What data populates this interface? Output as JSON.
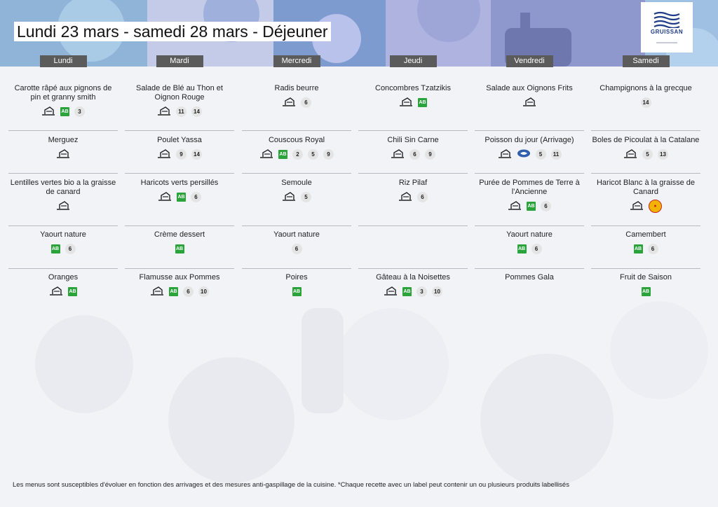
{
  "title": "Lundi 23 mars - samedi 28 mars  - Déjeuner",
  "logo": {
    "name": "GRUISSAN"
  },
  "colors": {
    "bio": "#29a33a",
    "day_header": "#5b5b5b",
    "badge": "#e4e4e4",
    "separator": "#b6b9c1"
  },
  "days": [
    {
      "label": "Lundi",
      "meals": [
        {
          "dish": "Carotte râpé aux pignons de pin et granny smith",
          "house": true,
          "bio": true,
          "allergens": [
            "3"
          ]
        },
        {
          "dish": "Merguez",
          "house": true,
          "bio": false,
          "allergens": []
        },
        {
          "dish": "Lentilles vertes bio a la graisse de canard",
          "house": true,
          "bio": false,
          "allergens": []
        },
        {
          "dish": "Yaourt nature",
          "house": false,
          "bio": true,
          "allergens": [
            "6"
          ]
        },
        {
          "dish": "Oranges",
          "house": true,
          "bio": true,
          "allergens": []
        }
      ]
    },
    {
      "label": "Mardi",
      "meals": [
        {
          "dish": "Salade de Blé au Thon et Oignon Rouge",
          "house": true,
          "bio": false,
          "allergens": [
            "11",
            "14"
          ]
        },
        {
          "dish": "Poulet Yassa",
          "house": true,
          "bio": false,
          "allergens": [
            "9",
            "14"
          ]
        },
        {
          "dish": "Haricots verts persillés",
          "house": true,
          "bio": true,
          "allergens": [
            "6"
          ]
        },
        {
          "dish": "Crème dessert",
          "house": false,
          "bio": true,
          "allergens": []
        },
        {
          "dish": "Flamusse aux Pommes",
          "house": true,
          "bio": true,
          "allergens": [
            "6",
            "10"
          ]
        }
      ]
    },
    {
      "label": "Mercredi",
      "meals": [
        {
          "dish": "Radis beurre",
          "house": true,
          "bio": false,
          "allergens": [
            "6"
          ]
        },
        {
          "dish": "Couscous Royal",
          "house": true,
          "bio": true,
          "allergens": [
            "2",
            "5",
            "9"
          ]
        },
        {
          "dish": "Semoule",
          "house": true,
          "bio": false,
          "allergens": [
            "5"
          ]
        },
        {
          "dish": "Yaourt nature",
          "house": false,
          "bio": false,
          "allergens": [
            "6"
          ]
        },
        {
          "dish": "Poires",
          "house": false,
          "bio": true,
          "allergens": []
        }
      ]
    },
    {
      "label": "Jeudi",
      "meals": [
        {
          "dish": "Concombres Tzatzikis",
          "house": true,
          "bio": true,
          "allergens": []
        },
        {
          "dish": "Chili Sin Carne",
          "house": true,
          "bio": false,
          "allergens": [
            "6",
            "9"
          ]
        },
        {
          "dish": "Riz Pilaf",
          "house": true,
          "bio": false,
          "allergens": [
            "6"
          ]
        },
        {
          "dish": "",
          "house": false,
          "bio": false,
          "allergens": []
        },
        {
          "dish": "Gâteau à la Noisettes",
          "house": true,
          "bio": true,
          "allergens": [
            "3",
            "10"
          ]
        }
      ]
    },
    {
      "label": "Vendredi",
      "meals": [
        {
          "dish": "Salade aux Oignons Frits",
          "house": true,
          "bio": false,
          "allergens": []
        },
        {
          "dish": "Poisson du jour (Arrivage)",
          "house": true,
          "bio": false,
          "fish_label": true,
          "allergens": [
            "5",
            "11"
          ]
        },
        {
          "dish": "Purée de Pommes de Terre à l'Ancienne",
          "house": true,
          "bio": true,
          "allergens": [
            "6"
          ]
        },
        {
          "dish": "Yaourt nature",
          "house": false,
          "bio": true,
          "allergens": [
            "6"
          ]
        },
        {
          "dish": "Pommes Gala",
          "house": false,
          "bio": false,
          "allergens": []
        }
      ]
    },
    {
      "label": "Samedi",
      "meals": [
        {
          "dish": "Champignons à la grecque",
          "house": false,
          "bio": false,
          "allergens": [
            "14"
          ]
        },
        {
          "dish": "Boles de Picoulat à la Catalane",
          "house": true,
          "bio": false,
          "allergens": [
            "5",
            "13"
          ]
        },
        {
          "dish": "Haricot Blanc à la graisse de Canard",
          "house": true,
          "bio": false,
          "quality_label": true,
          "allergens": []
        },
        {
          "dish": "Camembert",
          "house": false,
          "bio": true,
          "allergens": [
            "6"
          ]
        },
        {
          "dish": "Fruit de Saison",
          "house": false,
          "bio": true,
          "allergens": []
        }
      ]
    }
  ],
  "footer": "Les menus sont susceptibles d'évoluer en fonction des arrivages et des mesures anti-gaspillage de la cuisine. *Chaque recette avec un label peut contenir un ou plusieurs produits labellisés"
}
